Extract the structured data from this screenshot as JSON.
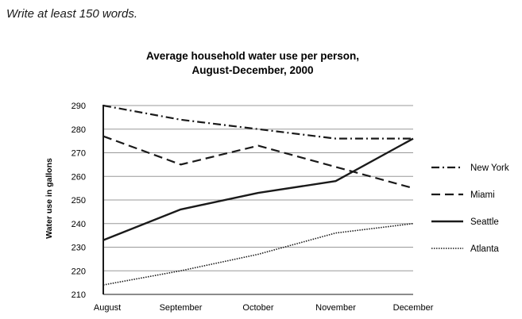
{
  "instruction": "Write at least 150 words.",
  "chart_data": {
    "type": "line",
    "title": "Average household water use per person,",
    "subtitle": "August-December, 2000",
    "xlabel": "",
    "ylabel": "Water use in gallons",
    "categories": [
      "August",
      "September",
      "October",
      "November",
      "December"
    ],
    "ylim": [
      210,
      290
    ],
    "yticks": [
      210,
      220,
      230,
      240,
      250,
      260,
      270,
      280,
      290
    ],
    "grid": true,
    "legend": "right",
    "series": [
      {
        "name": "New York",
        "style": "dashdot",
        "values": [
          290,
          284,
          280,
          276,
          276
        ]
      },
      {
        "name": "Miami",
        "style": "dashed",
        "values": [
          277,
          265,
          273,
          264,
          255
        ]
      },
      {
        "name": "Seattle",
        "style": "solid",
        "values": [
          233,
          246,
          253,
          258,
          276
        ]
      },
      {
        "name": "Atlanta",
        "style": "dotted",
        "values": [
          214,
          220,
          227,
          236,
          240
        ]
      }
    ],
    "colors": {
      "line": "#1a1a1a",
      "grid": "#999999",
      "axis": "#1a1a1a"
    }
  }
}
